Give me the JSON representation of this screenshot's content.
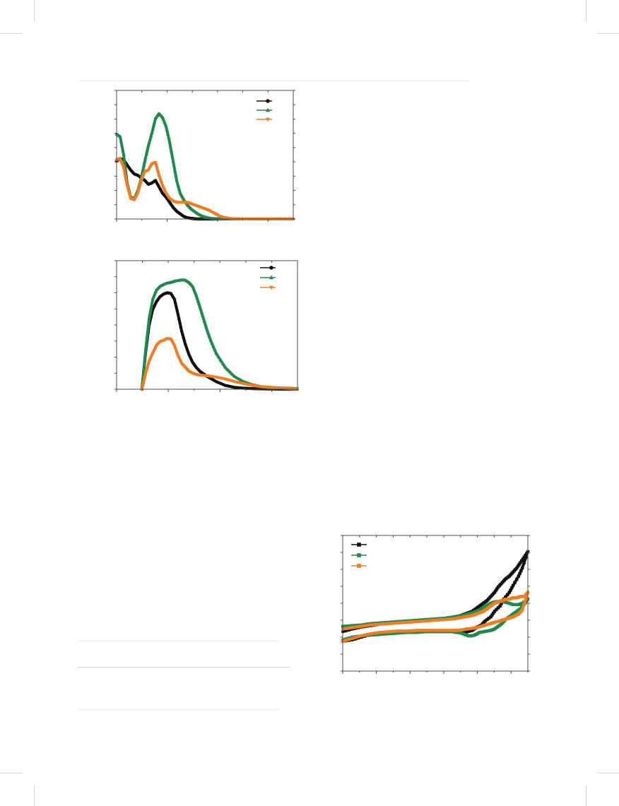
{
  "colors": {
    "black": "#111111",
    "green": "#1f8a4c",
    "orange": "#f07d22",
    "frame": "#4a4a4a",
    "rule": "#e0e0e0"
  },
  "chart_data": [
    {
      "type": "line",
      "title": "",
      "xlabel": "",
      "ylabel": "",
      "xlim": [
        0,
        100
      ],
      "ylim": [
        0,
        100
      ],
      "grid": false,
      "legend_position": "top-right",
      "marker_style": [
        "circle",
        "triangle-up",
        "triangle-down"
      ],
      "series": [
        {
          "x": [
            0,
            2,
            4,
            6,
            8,
            10,
            12,
            14,
            16,
            18,
            20,
            22,
            24,
            26,
            28,
            30,
            32,
            34,
            36,
            38,
            40,
            42,
            44,
            46,
            48,
            50,
            52,
            54,
            56,
            58,
            60,
            65,
            70,
            75,
            80,
            85,
            90,
            95,
            100
          ],
          "values": [
            45,
            47,
            46,
            42,
            38,
            35,
            34,
            32,
            30,
            27,
            28,
            30,
            25,
            20,
            17,
            13,
            9,
            6,
            4,
            2,
            1,
            0.5,
            0.2,
            0,
            0,
            0,
            0,
            0,
            0,
            0,
            0,
            0,
            0,
            0,
            0,
            0,
            0,
            0,
            0
          ]
        },
        {
          "x": [
            0,
            2,
            4,
            6,
            8,
            10,
            12,
            14,
            16,
            18,
            20,
            22,
            24,
            26,
            28,
            30,
            32,
            34,
            36,
            38,
            40,
            42,
            44,
            46,
            48,
            50,
            52,
            54,
            56,
            58,
            60,
            65,
            70,
            75,
            80,
            85,
            90,
            95,
            100
          ],
          "values": [
            66,
            64,
            50,
            28,
            17,
            16,
            22,
            32,
            45,
            57,
            67,
            78,
            82,
            79,
            72,
            60,
            45,
            30,
            20,
            15,
            11,
            8,
            6,
            4,
            2.5,
            1.5,
            0.8,
            0.4,
            0.2,
            0,
            0,
            0,
            0,
            0,
            0,
            0,
            0,
            0,
            0
          ]
        },
        {
          "x": [
            0,
            2,
            4,
            6,
            8,
            10,
            12,
            14,
            16,
            18,
            20,
            22,
            24,
            26,
            28,
            30,
            32,
            34,
            36,
            38,
            40,
            42,
            44,
            46,
            48,
            50,
            52,
            54,
            56,
            58,
            60,
            65,
            70,
            75,
            80,
            85,
            90,
            95,
            100
          ],
          "values": [
            46,
            47,
            40,
            26,
            16,
            15,
            20,
            30,
            37,
            38,
            43,
            44,
            34,
            26,
            20,
            16,
            14,
            13,
            13,
            13,
            13,
            12,
            11,
            10,
            9,
            8,
            7,
            5.5,
            4,
            2.5,
            1.5,
            0.3,
            0,
            0,
            0,
            0,
            0,
            0,
            0
          ]
        }
      ]
    },
    {
      "type": "line",
      "title": "",
      "xlabel": "",
      "ylabel": "",
      "xlim": [
        0,
        100
      ],
      "ylim": [
        0,
        100
      ],
      "grid": false,
      "legend_position": "top-right",
      "marker_style": [
        "circle",
        "triangle-up",
        "triangle-down"
      ],
      "series": [
        {
          "x": [
            14,
            16,
            18,
            20,
            22,
            24,
            26,
            28,
            30,
            32,
            34,
            36,
            38,
            40,
            42,
            44,
            46,
            48,
            50,
            55,
            60,
            65,
            70,
            75,
            80,
            85,
            90,
            95,
            100
          ],
          "values": [
            0,
            28,
            50,
            62,
            68,
            72,
            74,
            75,
            74.5,
            70,
            58,
            45,
            35,
            27,
            21,
            17,
            14,
            12,
            10,
            6,
            3,
            1.5,
            0.8,
            0.5,
            0.3,
            0.2,
            0.1,
            0,
            0
          ]
        },
        {
          "x": [
            14,
            16,
            18,
            20,
            22,
            24,
            26,
            28,
            30,
            32,
            34,
            36,
            38,
            40,
            42,
            44,
            46,
            48,
            50,
            52,
            55,
            60,
            65,
            70,
            75,
            80,
            85,
            90,
            95,
            100
          ],
          "values": [
            0,
            30,
            55,
            70,
            77,
            80,
            81.5,
            82.5,
            83,
            84,
            84.5,
            85,
            84.8,
            83,
            80,
            73,
            64,
            55,
            46,
            38,
            28,
            17,
            10,
            6,
            3.5,
            2,
            1.5,
            1,
            0.8,
            0.5
          ]
        },
        {
          "x": [
            14,
            16,
            18,
            20,
            22,
            24,
            26,
            28,
            30,
            32,
            34,
            36,
            38,
            40,
            42,
            44,
            46,
            48,
            50,
            55,
            60,
            65,
            70,
            75,
            80,
            85,
            90,
            95,
            100
          ],
          "values": [
            0,
            12,
            22,
            28,
            34,
            37,
            38,
            39.5,
            39,
            34,
            26,
            20,
            17,
            14,
            12.5,
            11.5,
            11,
            10.8,
            10.5,
            9.5,
            8,
            6,
            4.5,
            3,
            2,
            1.5,
            1,
            0.5,
            0.2
          ]
        }
      ]
    },
    {
      "type": "line",
      "title": "",
      "xlabel": "",
      "ylabel": "",
      "xlim": [
        0,
        100
      ],
      "ylim": [
        0,
        100
      ],
      "grid": false,
      "legend_position": "top-left",
      "marker_style": [
        "square",
        "square",
        "square"
      ],
      "series": [
        {
          "x": [
            0,
            5,
            10,
            15,
            20,
            25,
            30,
            35,
            40,
            45,
            50,
            55,
            60,
            62,
            65,
            67,
            70,
            72,
            75,
            77,
            80,
            82,
            85,
            87,
            90,
            92,
            95,
            97,
            100,
            98,
            96,
            94,
            92,
            90,
            88,
            86,
            84,
            82,
            80,
            78,
            76,
            74,
            72,
            70,
            68,
            66,
            64,
            62,
            60,
            55,
            50,
            45,
            40,
            35,
            30,
            25,
            20,
            15,
            10,
            5,
            0
          ],
          "values": [
            22,
            23,
            25,
            27,
            28,
            28.5,
            29,
            29,
            29.5,
            29.5,
            29.5,
            29.5,
            29,
            28.5,
            28.5,
            29,
            30,
            32,
            34,
            37,
            40,
            44,
            48,
            53,
            58,
            63,
            70,
            76,
            88,
            84,
            80,
            76,
            73,
            70,
            68,
            65,
            62,
            58,
            55,
            52,
            50,
            48,
            46,
            44,
            43,
            42,
            41,
            40,
            39.5,
            38.5,
            38,
            37.5,
            37,
            36.5,
            36,
            35.5,
            34.5,
            33.5,
            32.5,
            31,
            29
          ]
        },
        {
          "x": [
            0,
            5,
            10,
            15,
            20,
            25,
            30,
            35,
            40,
            45,
            50,
            55,
            60,
            62,
            65,
            67,
            70,
            72,
            75,
            77,
            80,
            82,
            85,
            87,
            90,
            92,
            95,
            97,
            100,
            98,
            96,
            94,
            92,
            90,
            88,
            86,
            84,
            82,
            80,
            78,
            76,
            74,
            72,
            70,
            68,
            66,
            64,
            62,
            60,
            55,
            50,
            45,
            40,
            35,
            30,
            25,
            20,
            15,
            10,
            5,
            0
          ],
          "values": [
            33,
            33.5,
            34,
            35,
            35.5,
            36,
            36.5,
            37,
            37.5,
            38,
            38.5,
            39,
            40,
            40.5,
            41,
            42,
            43,
            44,
            46,
            48,
            50,
            51,
            51.5,
            51,
            50,
            49,
            49,
            50,
            53,
            49,
            46,
            44,
            42,
            40,
            38,
            35,
            33,
            31,
            30,
            29.5,
            29,
            28.5,
            27,
            26,
            26,
            27,
            28,
            28.5,
            29,
            29,
            29,
            29,
            28.5,
            28.5,
            28,
            27.5,
            27,
            26.5,
            26,
            25,
            23
          ]
        },
        {
          "x": [
            0,
            5,
            10,
            15,
            20,
            25,
            30,
            35,
            40,
            45,
            50,
            55,
            60,
            62,
            65,
            67,
            70,
            72,
            75,
            77,
            80,
            82,
            85,
            87,
            90,
            92,
            95,
            97,
            100,
            98,
            96,
            94,
            92,
            90,
            88,
            86,
            84,
            82,
            80,
            78,
            76,
            74,
            72,
            70,
            68,
            66,
            64,
            62,
            60,
            55,
            50,
            45,
            40,
            35,
            30,
            25,
            20,
            15,
            10,
            5,
            0
          ],
          "values": [
            22,
            24,
            26,
            27.5,
            28.5,
            29,
            29.5,
            29.5,
            30,
            30,
            30,
            30,
            30,
            30,
            30.5,
            31,
            31.5,
            32,
            33,
            34,
            35,
            36,
            37,
            38,
            39,
            40,
            42,
            45,
            58,
            55,
            55,
            54,
            54,
            53,
            53,
            52,
            51,
            50,
            48,
            46,
            44,
            43,
            42,
            41,
            40.5,
            40,
            39.5,
            39,
            38.5,
            38,
            37.5,
            37,
            36.5,
            36,
            35.5,
            35,
            34.5,
            34,
            33,
            32,
            31
          ]
        }
      ]
    }
  ]
}
